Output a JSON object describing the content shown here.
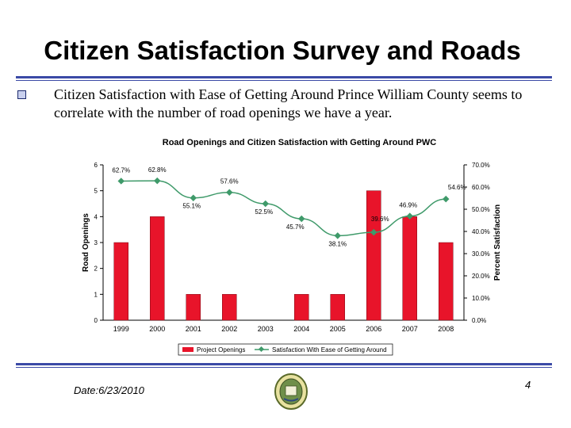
{
  "slide": {
    "title": "Citizen Satisfaction Survey and Roads",
    "bullet": "Citizen Satisfaction with Ease of Getting Around Prince William County seems to correlate with the number of road openings we have a year.",
    "date": "Date:6/23/2010",
    "page_number": "4",
    "colors": {
      "rule": "#3b4aa6",
      "bar": "#e8142a",
      "line": "#3f9a6a"
    },
    "icons": {
      "bullet": "checkbox-bullet-icon",
      "seal": "county-seal-icon"
    }
  },
  "chart_data": {
    "type": "bar",
    "title": "Road Openings and Citizen Satisfaction with Getting Around PWC",
    "categories": [
      "1999",
      "2000",
      "2001",
      "2002",
      "2003",
      "2004",
      "2005",
      "2006",
      "2007",
      "2008"
    ],
    "series": [
      {
        "name": "Project Openings",
        "type": "bar",
        "axis": "left",
        "values": [
          3,
          4,
          1,
          1,
          0,
          1,
          1,
          5,
          4,
          3
        ]
      },
      {
        "name": "Satisfaction With Ease of Getting Around",
        "type": "line",
        "axis": "right",
        "values": [
          62.7,
          62.8,
          55.1,
          57.6,
          52.5,
          45.7,
          38.1,
          39.6,
          46.9,
          54.6
        ],
        "labels": [
          "62.7%",
          "62.8%",
          "55.1%",
          "57.6%",
          "52.5%",
          "45.7%",
          "38.1%",
          "39.6%",
          "46.9%",
          "54.6%"
        ]
      }
    ],
    "ylabel": "Road Openings",
    "ylim": [
      0,
      6
    ],
    "yticks": [
      "0",
      "1",
      "2",
      "3",
      "4",
      "5",
      "6"
    ],
    "y2label": "Percent Satisfaction",
    "y2lim": [
      0,
      70
    ],
    "y2ticks": [
      "0.0%",
      "10.0%",
      "20.0%",
      "30.0%",
      "40.0%",
      "50.0%",
      "60.0%",
      "70.0%"
    ],
    "grid": false,
    "legend": "bottom"
  }
}
